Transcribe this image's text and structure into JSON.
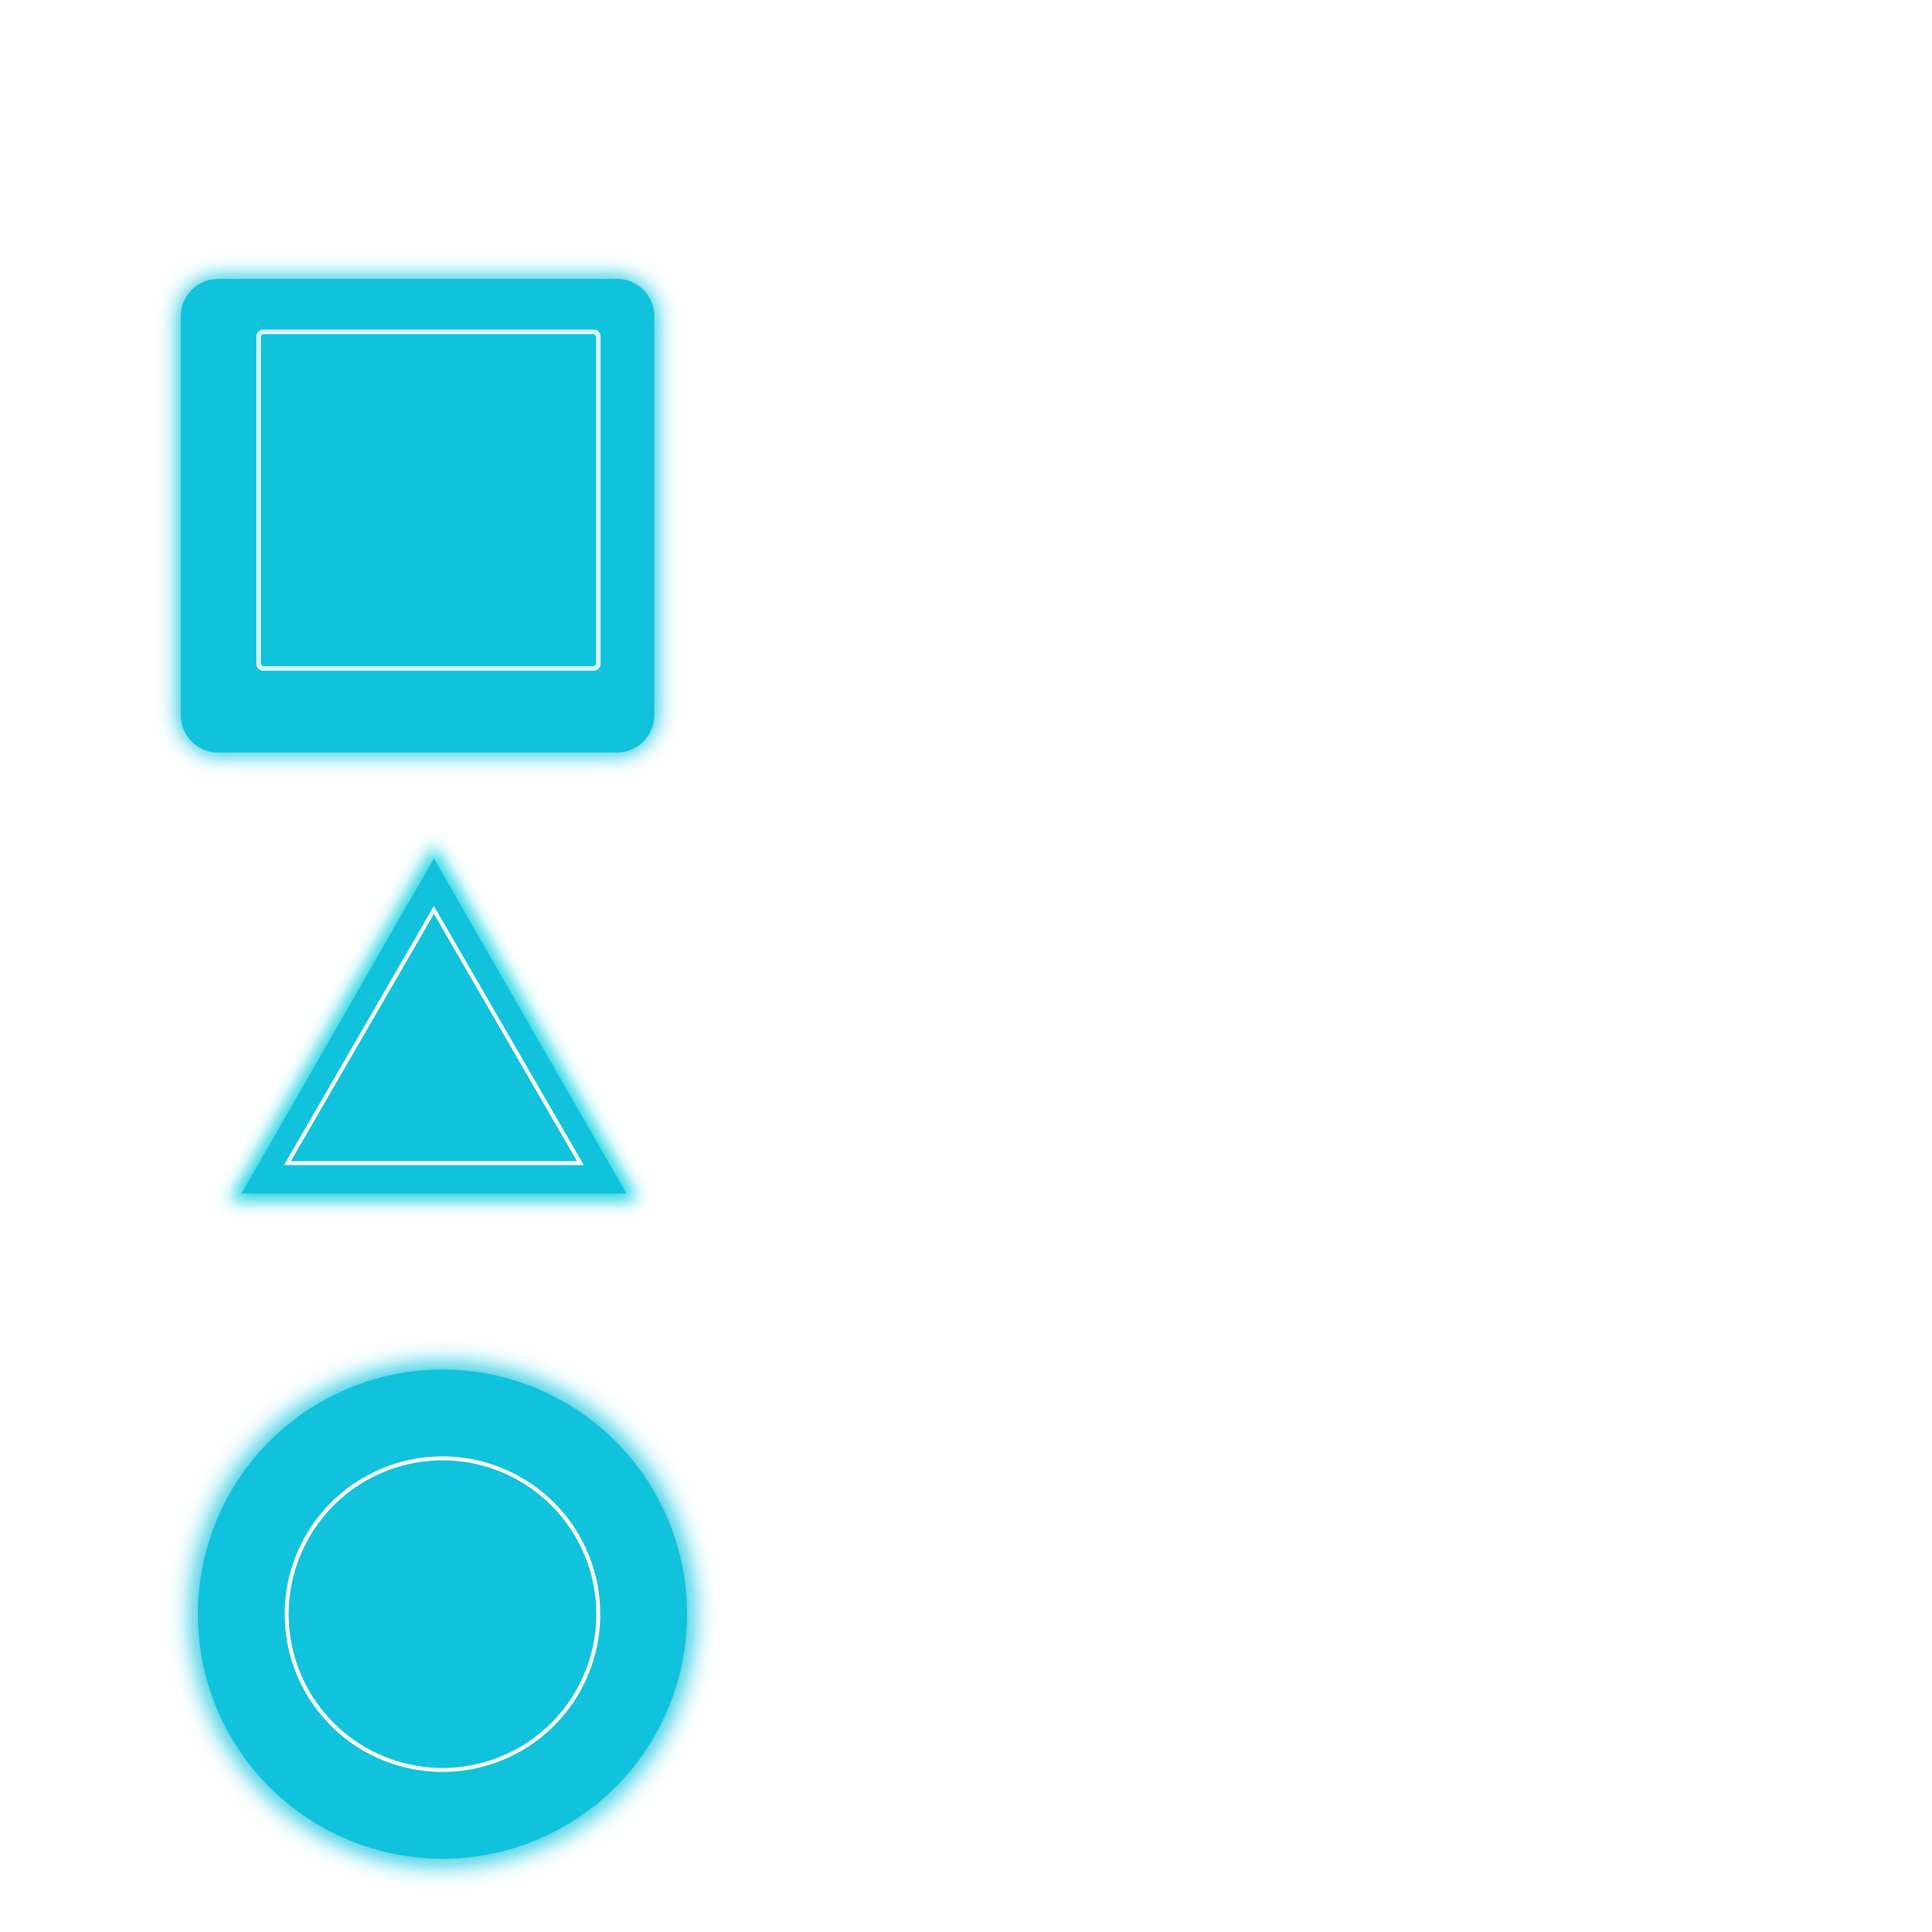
{
  "shapes": [
    {
      "name": "square",
      "icon": "square-icon",
      "fill_color": "#10C2DC",
      "glow_color": "#10C2DC",
      "outline_color": "#D6F4F8"
    },
    {
      "name": "triangle",
      "icon": "triangle-icon",
      "fill_color": "#10C2DC",
      "glow_color": "#20D6E2",
      "outline_color": "#FFFFFF"
    },
    {
      "name": "circle",
      "icon": "circle-icon",
      "fill_color": "#10C2DC",
      "glow_color": "#10C2DC",
      "outline_color": "#FFFFFF"
    }
  ]
}
